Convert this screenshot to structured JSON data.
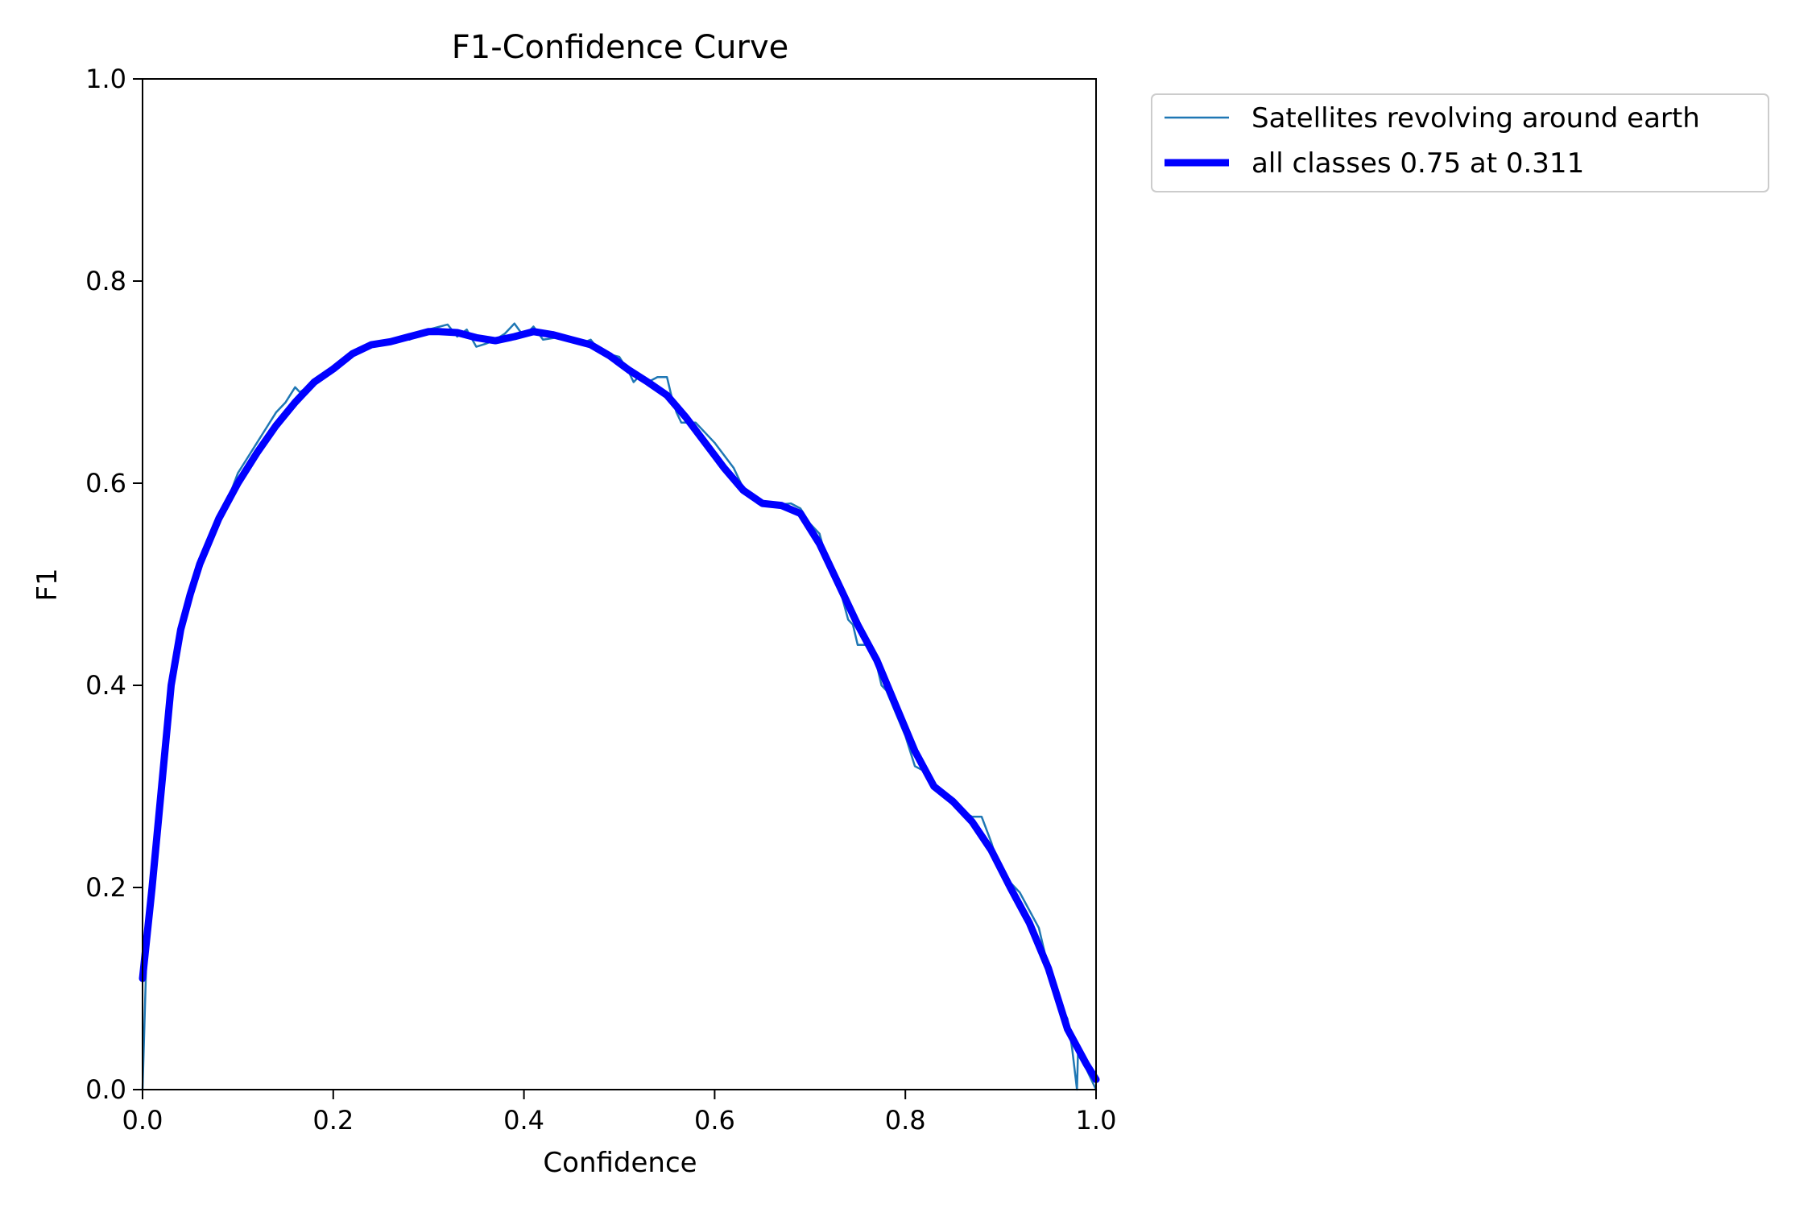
{
  "chart_data": {
    "type": "line",
    "title": "F1-Confidence Curve",
    "xlabel": "Confidence",
    "ylabel": "F1",
    "xlim": [
      0.0,
      1.0
    ],
    "ylim": [
      0.0,
      1.0
    ],
    "xticks": [
      "0.0",
      "0.2",
      "0.4",
      "0.6",
      "0.8",
      "1.0"
    ],
    "yticks": [
      "0.0",
      "0.2",
      "0.4",
      "0.6",
      "0.8",
      "1.0"
    ],
    "grid": false,
    "legend_position": "outside-top-right",
    "series": [
      {
        "name": "Satellites revolving around earth",
        "color": "#1f77b4",
        "x": [
          0.0,
          0.004,
          0.01,
          0.015,
          0.02,
          0.025,
          0.03,
          0.035,
          0.04,
          0.05,
          0.06,
          0.07,
          0.08,
          0.09,
          0.1,
          0.11,
          0.12,
          0.13,
          0.14,
          0.15,
          0.16,
          0.165,
          0.18,
          0.2,
          0.22,
          0.23,
          0.25,
          0.27,
          0.28,
          0.3,
          0.32,
          0.33,
          0.34,
          0.35,
          0.36,
          0.37,
          0.38,
          0.39,
          0.4,
          0.41,
          0.42,
          0.44,
          0.46,
          0.47,
          0.48,
          0.5,
          0.51,
          0.515,
          0.52,
          0.53,
          0.54,
          0.55,
          0.555,
          0.56,
          0.565,
          0.58,
          0.6,
          0.62,
          0.63,
          0.64,
          0.645,
          0.66,
          0.68,
          0.69,
          0.7,
          0.71,
          0.72,
          0.73,
          0.74,
          0.745,
          0.75,
          0.76,
          0.77,
          0.775,
          0.78,
          0.8,
          0.81,
          0.82,
          0.84,
          0.86,
          0.87,
          0.88,
          0.89,
          0.9,
          0.91,
          0.92,
          0.94,
          0.95,
          0.96,
          0.97,
          0.975,
          0.98,
          0.981,
          0.99,
          1.0
        ],
        "y": [
          0.0,
          0.13,
          0.2,
          0.26,
          0.32,
          0.36,
          0.4,
          0.44,
          0.445,
          0.49,
          0.52,
          0.545,
          0.565,
          0.585,
          0.61,
          0.625,
          0.64,
          0.655,
          0.67,
          0.68,
          0.695,
          0.69,
          0.7,
          0.715,
          0.73,
          0.735,
          0.738,
          0.745,
          0.742,
          0.752,
          0.757,
          0.745,
          0.752,
          0.735,
          0.738,
          0.742,
          0.748,
          0.758,
          0.745,
          0.755,
          0.742,
          0.745,
          0.738,
          0.742,
          0.73,
          0.725,
          0.71,
          0.7,
          0.705,
          0.7,
          0.705,
          0.705,
          0.685,
          0.67,
          0.66,
          0.66,
          0.64,
          0.615,
          0.595,
          0.585,
          0.58,
          0.578,
          0.58,
          0.575,
          0.56,
          0.55,
          0.515,
          0.5,
          0.465,
          0.46,
          0.44,
          0.44,
          0.42,
          0.4,
          0.395,
          0.35,
          0.32,
          0.315,
          0.29,
          0.275,
          0.27,
          0.27,
          0.245,
          0.215,
          0.205,
          0.195,
          0.16,
          0.12,
          0.09,
          0.07,
          0.04,
          0.0,
          0.035,
          0.02,
          0.0
        ]
      },
      {
        "name": "all classes 0.75 at 0.311",
        "color": "#0000ff",
        "x": [
          0.0,
          0.01,
          0.02,
          0.03,
          0.04,
          0.05,
          0.06,
          0.08,
          0.1,
          0.12,
          0.14,
          0.16,
          0.18,
          0.2,
          0.22,
          0.24,
          0.26,
          0.28,
          0.3,
          0.311,
          0.33,
          0.35,
          0.37,
          0.39,
          0.41,
          0.43,
          0.45,
          0.47,
          0.49,
          0.51,
          0.53,
          0.55,
          0.57,
          0.59,
          0.61,
          0.63,
          0.65,
          0.67,
          0.69,
          0.71,
          0.73,
          0.75,
          0.77,
          0.79,
          0.81,
          0.83,
          0.85,
          0.87,
          0.89,
          0.91,
          0.93,
          0.95,
          0.97,
          0.99,
          1.0
        ],
        "y": [
          0.11,
          0.2,
          0.3,
          0.4,
          0.455,
          0.49,
          0.52,
          0.565,
          0.6,
          0.63,
          0.657,
          0.68,
          0.7,
          0.713,
          0.728,
          0.737,
          0.74,
          0.745,
          0.75,
          0.75,
          0.749,
          0.744,
          0.741,
          0.745,
          0.75,
          0.747,
          0.742,
          0.737,
          0.726,
          0.712,
          0.7,
          0.687,
          0.665,
          0.64,
          0.615,
          0.593,
          0.58,
          0.578,
          0.57,
          0.54,
          0.5,
          0.46,
          0.425,
          0.38,
          0.335,
          0.3,
          0.285,
          0.265,
          0.237,
          0.2,
          0.165,
          0.12,
          0.06,
          0.025,
          0.01
        ]
      }
    ]
  }
}
